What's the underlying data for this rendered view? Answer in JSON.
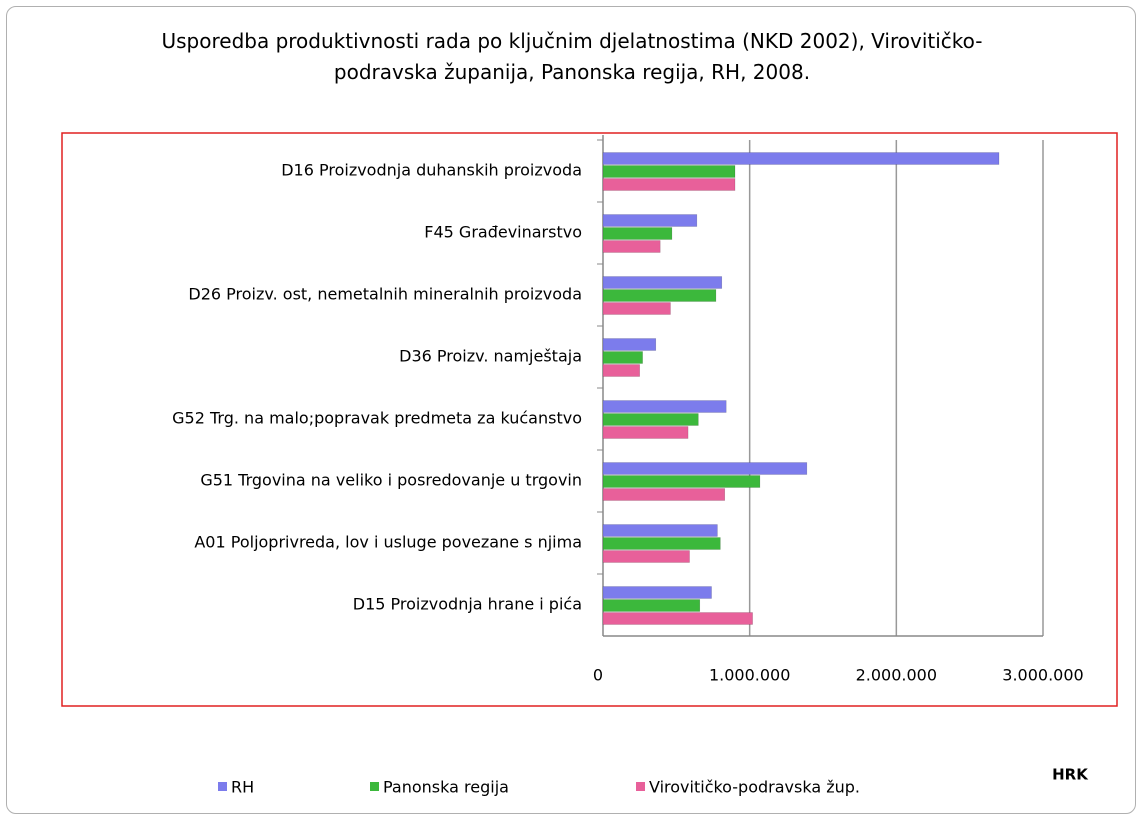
{
  "chart_data": {
    "type": "hbar",
    "title": "Usporedba produktivnosti rada po ključnim djelatnostima (NKD 2002), Virovitičko-podravska županija, Panonska regija, RH, 2008.",
    "unit": "HRK",
    "categories": [
      "D16 Proizvodnja duhanskih proizvoda",
      "F45 Građevinarstvo",
      "D26 Proizv. ost, nemetalnih mineralnih proizvoda",
      "D36 Proizv. namještaja",
      "G52 Trg. na malo;popravak predmeta za kućanstvo",
      "G51 Trgovina na veliko i posredovanje u trgovin",
      "A01 Poljoprivreda, lov i usluge povezane s njima",
      "D15 Proizvodnja hrane i pića"
    ],
    "series": [
      {
        "name": "RH",
        "color": "#7c7cec",
        "values": [
          2700000,
          640000,
          810000,
          360000,
          840000,
          1390000,
          780000,
          740000
        ]
      },
      {
        "name": "Panonska regija",
        "color": "#3cb83c",
        "values": [
          900000,
          470000,
          770000,
          270000,
          650000,
          1070000,
          800000,
          660000
        ]
      },
      {
        "name": "Virovitičko-podravska žup.",
        "color": "#e8609a",
        "values": [
          900000,
          390000,
          460000,
          250000,
          580000,
          830000,
          590000,
          1020000
        ]
      }
    ],
    "xlim": [
      0,
      3000000
    ],
    "xticks": [
      0,
      {
        "value": 1000000,
        "label": "1.000.000"
      },
      {
        "value": 2000000,
        "label": "2.000.000"
      },
      {
        "value": 3000000,
        "label": "3.000.000"
      }
    ],
    "grid": true
  }
}
